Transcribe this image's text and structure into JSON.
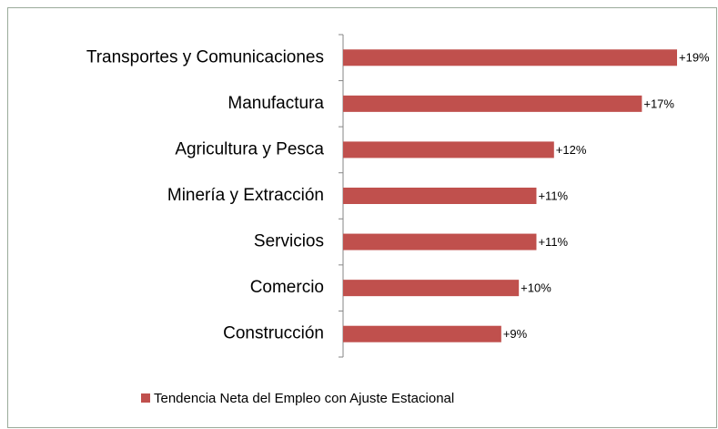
{
  "chart_data": {
    "type": "bar",
    "orientation": "horizontal",
    "categories": [
      "Transportes y Comunicaciones",
      "Manufactura",
      "Agricultura y Pesca",
      "Minería y Extracción",
      "Servicios",
      "Comercio",
      "Construcción"
    ],
    "series": [
      {
        "name": "Tendencia Neta del Empleo con Ajuste Estacional",
        "color": "#c0504d",
        "values": [
          19,
          17,
          12,
          11,
          11,
          10,
          9
        ],
        "value_labels": [
          "+19%",
          "+17%",
          "+12%",
          "+11%",
          "+11%",
          "+10%",
          "+9%"
        ]
      }
    ],
    "legend": "bottom"
  }
}
